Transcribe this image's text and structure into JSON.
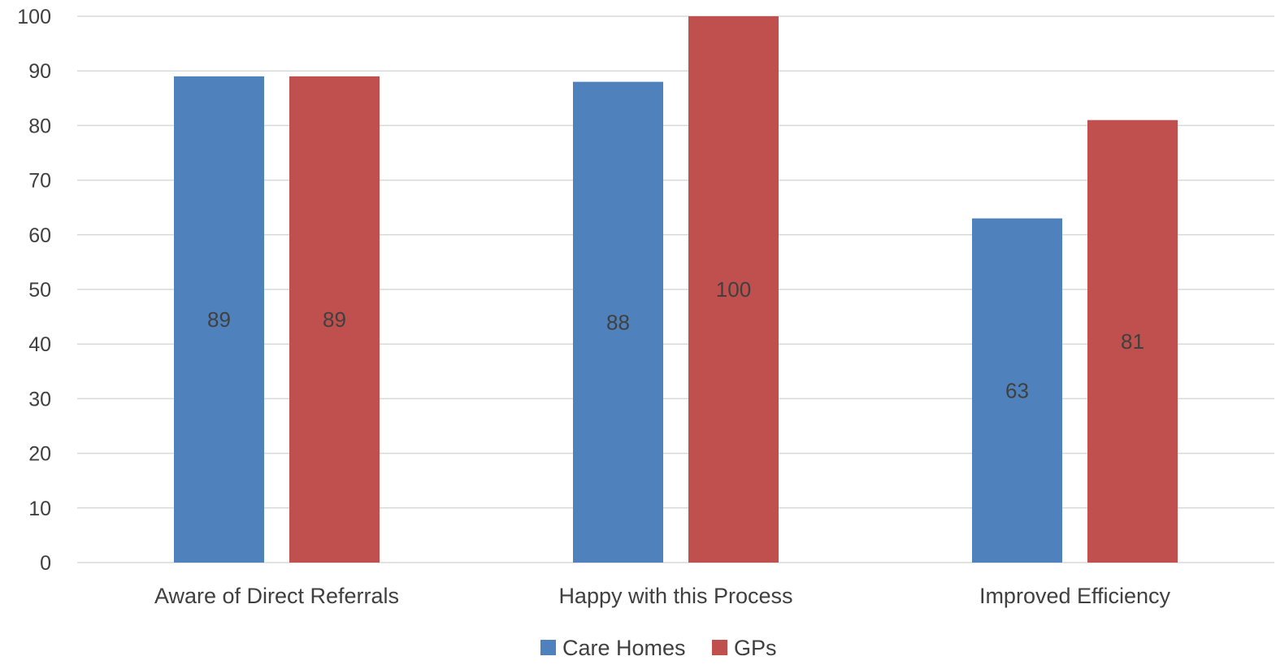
{
  "chart_data": {
    "type": "bar",
    "title": "",
    "xlabel": "",
    "ylabel": "",
    "categories": [
      "Aware of Direct Referrals",
      "Happy with this Process",
      "Improved Efficiency"
    ],
    "series": [
      {
        "name": "Care Homes",
        "values": [
          89,
          88,
          63
        ],
        "color": "#4f81bd"
      },
      {
        "name": "GPs",
        "values": [
          89,
          100,
          81
        ],
        "color": "#c0504d"
      }
    ],
    "ylim": [
      0,
      100
    ],
    "yticks": [
      0,
      10,
      20,
      30,
      40,
      50,
      60,
      70,
      80,
      90,
      100
    ],
    "grid": true,
    "data_labels": true,
    "legend_position": "bottom"
  }
}
